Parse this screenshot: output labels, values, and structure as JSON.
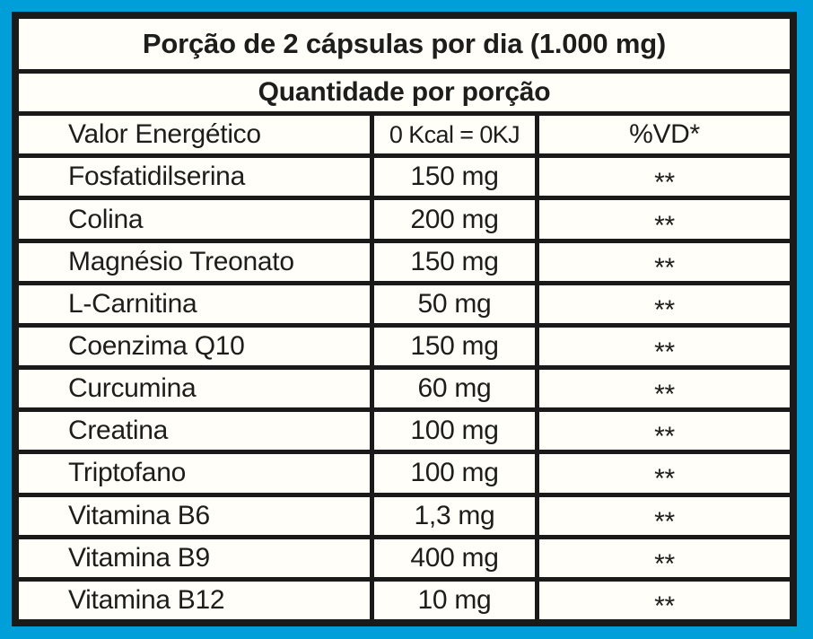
{
  "label": {
    "colors": {
      "frame": "#009fda",
      "table_border": "#1a1a1a",
      "background": "#fffef8",
      "text": "#1d1d1b"
    },
    "header1": "Porção de 2 cápsulas por dia (1.000 mg)",
    "header2": "Quantidade por porção",
    "rows": [
      {
        "name": "Valor Energético",
        "amount": "0 Kcal = 0KJ",
        "vd": "%VD*"
      },
      {
        "name": "Fosfatidilserina",
        "amount": "150 mg",
        "vd": "**"
      },
      {
        "name": "Colina",
        "amount": "200 mg",
        "vd": "**"
      },
      {
        "name": "Magnésio Treonato",
        "amount": "150 mg",
        "vd": "**"
      },
      {
        "name": "L-Carnitina",
        "amount": "50 mg",
        "vd": "**"
      },
      {
        "name": "Coenzima Q10",
        "amount": "150 mg",
        "vd": "**"
      },
      {
        "name": "Curcumina",
        "amount": "60 mg",
        "vd": "**"
      },
      {
        "name": "Creatina",
        "amount": "100 mg",
        "vd": "**"
      },
      {
        "name": "Triptofano",
        "amount": "100 mg",
        "vd": "**"
      },
      {
        "name": "Vitamina B6",
        "amount": "1,3 mg",
        "vd": "**"
      },
      {
        "name": "Vitamina B9",
        "amount": "400 mg",
        "vd": "**"
      },
      {
        "name": "Vitamina B12",
        "amount": "10 mg",
        "vd": "**"
      }
    ]
  }
}
